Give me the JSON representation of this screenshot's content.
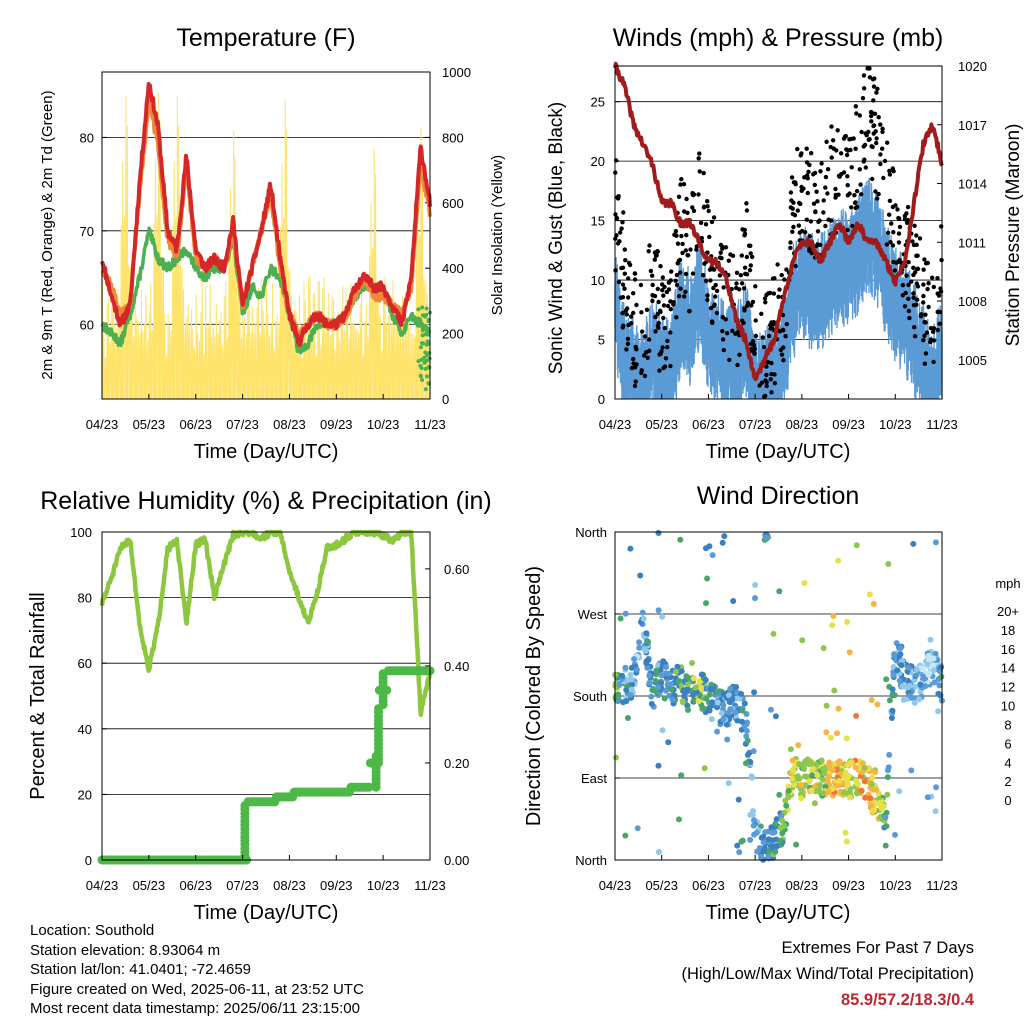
{
  "colors": {
    "t2m": "#d62728",
    "t9m": "#f0883a",
    "td": "#4caf50",
    "solar": "#fde36a",
    "wind": "#5b9bd5",
    "gust": "#000000",
    "pressure": "#a01c1c",
    "rh": "#8dc63f",
    "precip": "#4db848",
    "extremes": "#c0272d"
  },
  "panels": {
    "temperature": {
      "title": "Temperature (F)",
      "xlabel": "Time (Day/UTC)",
      "ylabel_left": "2m & 9m T (Red, Orange) & 2m Td (Green)",
      "ylabel_right": "Solar Insolation (Yellow)",
      "left_ticks": [
        "60",
        "70",
        "80"
      ],
      "right_ticks": [
        "0",
        "200",
        "400",
        "600",
        "800",
        "1000"
      ],
      "x_ticks": [
        "04/23",
        "05/23",
        "06/23",
        "07/23",
        "08/23",
        "09/23",
        "10/23",
        "11/23"
      ]
    },
    "winds": {
      "title": "Winds (mph) & Pressure (mb)",
      "xlabel": "Time (Day/UTC)",
      "ylabel_left": "Sonic Wind & Gust (Blue, Black)",
      "ylabel_right": "Station Pressure (Maroon)",
      "left_ticks": [
        "0",
        "5",
        "10",
        "15",
        "20",
        "25"
      ],
      "right_ticks": [
        "1005",
        "1008",
        "1011",
        "1014",
        "1017",
        "1020"
      ],
      "x_ticks": [
        "04/23",
        "05/23",
        "06/23",
        "07/23",
        "08/23",
        "09/23",
        "10/23",
        "11/23"
      ]
    },
    "humidity": {
      "title": "Relative Humidity (%) & Precipitation (in)",
      "xlabel": "Time (Day/UTC)",
      "ylabel_left": "Percent & Total Rainfall",
      "left_ticks": [
        "0",
        "20",
        "40",
        "60",
        "80",
        "100"
      ],
      "right_ticks": [
        "0.00",
        "0.20",
        "0.40",
        "0.60"
      ],
      "x_ticks": [
        "04/23",
        "05/23",
        "06/23",
        "07/23",
        "08/23",
        "09/23",
        "10/23",
        "11/23"
      ]
    },
    "direction": {
      "title": "Wind Direction",
      "xlabel": "Time (Day/UTC)",
      "ylabel_left": "Direction (Colored By Speed)",
      "left_ticks": [
        "North",
        "East",
        "South",
        "West",
        "North"
      ],
      "x_ticks": [
        "04/23",
        "05/23",
        "06/23",
        "07/23",
        "08/23",
        "09/23",
        "10/23",
        "11/23"
      ],
      "colorbar": {
        "title": "mph",
        "labels": [
          "0",
          "2",
          "4",
          "6",
          "8",
          "10",
          "12",
          "14",
          "16",
          "18",
          "20+"
        ],
        "colors": [
          "#c6e6f6",
          "#92c9ea",
          "#5b9bd5",
          "#3a7fc0",
          "#4aa56a",
          "#8cc74e",
          "#e6e04a",
          "#f7b443",
          "#ef7534",
          "#e0452b",
          "#cf2626",
          "#a8191c"
        ]
      }
    }
  },
  "footer": {
    "location": "Location: Southold",
    "elevation": "Station elevation: 8.93064 m",
    "latlon": "Station lat/lon: 41.0401; -72.4659",
    "created": "Figure created on Wed, 2025-06-11, at 23:52 UTC",
    "timestamp": "Most recent data timestamp: 2025/06/11 23:15:00",
    "extremes_title": "Extremes For Past 7 Days",
    "extremes_subtitle": "(High/Low/Max Wind/Total Precipitation)",
    "extremes_values": "85.9/57.2/18.3/0.4"
  },
  "chart_data": [
    {
      "type": "line",
      "title": "Temperature (F)",
      "xlabel": "Time (Day/UTC)",
      "ylabel": "2m & 9m T (Red, Orange) & 2m Td (Green)",
      "y2label": "Solar Insolation (Yellow)",
      "xlim": [
        0,
        7
      ],
      "ylim": [
        52,
        87
      ],
      "y2lim": [
        0,
        1000
      ],
      "grid": true,
      "x": [
        0.0,
        0.2,
        0.4,
        0.6,
        0.8,
        1.0,
        1.2,
        1.4,
        1.6,
        1.8,
        2.0,
        2.2,
        2.4,
        2.6,
        2.8,
        3.0,
        3.2,
        3.4,
        3.6,
        3.8,
        4.0,
        4.2,
        4.4,
        4.6,
        4.8,
        5.0,
        5.2,
        5.4,
        5.6,
        5.8,
        6.0,
        6.2,
        6.4,
        6.6,
        6.8,
        7.0
      ],
      "series": [
        {
          "name": "2m T",
          "color": "#d62728",
          "values": [
            67,
            63,
            60,
            62,
            75,
            86,
            81,
            70,
            68,
            78,
            68,
            66,
            67,
            66,
            71,
            62,
            66,
            70,
            75,
            67,
            61,
            58,
            60,
            61,
            60,
            60,
            61,
            64,
            65,
            64,
            64,
            62,
            60,
            65,
            79,
            73
          ]
        },
        {
          "name": "9m T",
          "color": "#f0883a",
          "values": [
            66,
            64,
            61,
            62,
            74,
            84,
            79,
            69,
            67,
            77,
            67,
            66,
            67,
            66,
            70,
            62,
            66,
            70,
            74,
            66,
            61,
            59,
            60,
            61,
            60,
            60,
            61,
            63,
            65,
            63,
            63,
            62,
            61,
            64,
            77,
            72
          ]
        },
        {
          "name": "2m Td",
          "color": "#4caf50",
          "values": [
            60,
            59,
            58,
            61,
            65,
            70,
            67,
            66,
            67,
            68,
            66,
            65,
            66,
            66,
            69,
            61,
            64,
            63,
            66,
            65,
            61,
            57,
            58,
            60,
            60,
            60,
            61,
            63,
            64,
            64,
            64,
            61,
            59,
            61,
            60,
            59
          ]
        },
        {
          "name": "Solar",
          "axis": "right",
          "color": "#fde36a",
          "peaks": [
            0.5,
            1.2,
            1.6,
            2.8,
            3.9,
            5.8,
            6.8
          ],
          "peak_values": [
            980,
            990,
            980,
            870,
            970,
            810,
            880
          ]
        }
      ]
    },
    {
      "type": "scatter",
      "title": "Winds (mph) & Pressure (mb)",
      "xlabel": "Time (Day/UTC)",
      "ylabel": "Sonic Wind & Gust (Blue, Black)",
      "y2label": "Station Pressure (Maroon)",
      "xlim": [
        0,
        7
      ],
      "ylim": [
        0,
        28
      ],
      "y2lim": [
        1003,
        1020
      ],
      "grid": true,
      "x": [
        0.0,
        0.2,
        0.4,
        0.6,
        0.8,
        1.0,
        1.2,
        1.4,
        1.6,
        1.8,
        2.0,
        2.2,
        2.4,
        2.6,
        2.8,
        3.0,
        3.2,
        3.4,
        3.6,
        3.8,
        4.0,
        4.2,
        4.4,
        4.6,
        4.8,
        5.0,
        5.2,
        5.4,
        5.6,
        5.8,
        6.0,
        6.2,
        6.4,
        6.6,
        6.8,
        7.0
      ],
      "series": [
        {
          "name": "Sonic Wind",
          "color": "#5b9bd5",
          "values": [
            9,
            4,
            3,
            2,
            5,
            3,
            3,
            8,
            7,
            10,
            6,
            5,
            4,
            4,
            6,
            2,
            2,
            3,
            4,
            9,
            11,
            10,
            10,
            11,
            12,
            12,
            13,
            15,
            14,
            11,
            9,
            8,
            6,
            4,
            2,
            5
          ]
        },
        {
          "name": "Gust",
          "color": "#000000",
          "values": [
            16,
            10,
            6,
            5,
            10,
            6,
            6,
            14,
            12,
            16,
            12,
            10,
            8,
            7,
            12,
            5,
            4,
            6,
            8,
            15,
            17,
            16,
            16,
            18,
            19,
            18,
            21,
            24,
            22,
            18,
            14,
            12,
            10,
            8,
            6,
            12
          ]
        },
        {
          "name": "Station Pressure",
          "axis": "right",
          "color": "#a01c1c",
          "values": [
            1020,
            1019,
            1017,
            1016,
            1015,
            1013,
            1013,
            1012,
            1012,
            1011,
            1010,
            1010,
            1009,
            1007,
            1006,
            1004,
            1005,
            1006,
            1008,
            1010,
            1011,
            1011,
            1010,
            1011,
            1012,
            1011,
            1012,
            1011,
            1011,
            1010,
            1009,
            1010,
            1013,
            1016,
            1017,
            1015
          ]
        }
      ]
    },
    {
      "type": "line",
      "title": "Relative Humidity (%) & Precipitation (in)",
      "xlabel": "Time (Day/UTC)",
      "ylabel": "Percent & Total Rainfall",
      "xlim": [
        0,
        7
      ],
      "ylim": [
        0,
        100
      ],
      "y2lim": [
        0,
        0.676
      ],
      "grid": true,
      "x": [
        0.0,
        0.2,
        0.4,
        0.6,
        0.8,
        1.0,
        1.2,
        1.4,
        1.6,
        1.8,
        2.0,
        2.2,
        2.4,
        2.6,
        2.8,
        3.0,
        3.2,
        3.4,
        3.6,
        3.8,
        4.0,
        4.2,
        4.4,
        4.6,
        4.8,
        5.0,
        5.2,
        5.4,
        5.6,
        5.8,
        6.0,
        6.2,
        6.4,
        6.6,
        6.8,
        7.0
      ],
      "series": [
        {
          "name": "RH",
          "color": "#8dc63f",
          "values": [
            78,
            86,
            95,
            98,
            72,
            58,
            72,
            95,
            97,
            72,
            96,
            98,
            80,
            90,
            99,
            100,
            100,
            98,
            100,
            100,
            88,
            80,
            72,
            82,
            95,
            96,
            98,
            100,
            100,
            100,
            99,
            97,
            100,
            100,
            45,
            57
          ]
        },
        {
          "name": "Total Rainfall",
          "axis": "right",
          "color": "#4db848",
          "values": [
            0,
            0,
            0,
            0,
            0,
            0,
            0,
            0,
            0,
            0,
            0,
            0,
            0,
            0,
            0,
            0,
            0.12,
            0.12,
            0.12,
            0.13,
            0.13,
            0.14,
            0.14,
            0.14,
            0.14,
            0.14,
            0.14,
            0.15,
            0.15,
            0.2,
            0.35,
            0.39,
            0.39,
            0.39,
            0.39,
            0.39
          ]
        }
      ]
    },
    {
      "type": "scatter",
      "title": "Wind Direction",
      "xlabel": "Time (Day/UTC)",
      "ylabel": "Direction (Colored By Speed)",
      "xlim": [
        0,
        7
      ],
      "ylim": [
        0,
        360
      ],
      "grid": true,
      "x": [
        0.0,
        0.2,
        0.4,
        0.6,
        0.8,
        1.0,
        1.2,
        1.4,
        1.6,
        1.8,
        2.0,
        2.2,
        2.4,
        2.6,
        2.8,
        3.0,
        3.2,
        3.4,
        3.6,
        3.8,
        4.0,
        4.2,
        4.4,
        4.6,
        4.8,
        5.0,
        5.2,
        5.4,
        5.6,
        5.8,
        6.0,
        6.2,
        6.4,
        6.6,
        6.8,
        7.0
      ],
      "series": [
        {
          "name": "Direction",
          "values": [
            185,
            190,
            200,
            260,
            185,
            200,
            190,
            195,
            180,
            185,
            175,
            170,
            165,
            175,
            150,
            30,
            10,
            20,
            40,
            95,
            85,
            95,
            90,
            90,
            92,
            88,
            90,
            85,
            60,
            45,
            230,
            200,
            190,
            200,
            215,
            190
          ]
        },
        {
          "name": "Speed",
          "values": [
            9,
            6,
            5,
            4,
            8,
            6,
            6,
            9,
            8,
            11,
            7,
            6,
            5,
            5,
            7,
            4,
            6,
            8,
            9,
            12,
            13,
            12,
            12,
            13,
            14,
            13,
            14,
            15,
            14,
            8,
            6,
            5,
            4,
            3,
            2,
            7
          ]
        }
      ]
    }
  ]
}
